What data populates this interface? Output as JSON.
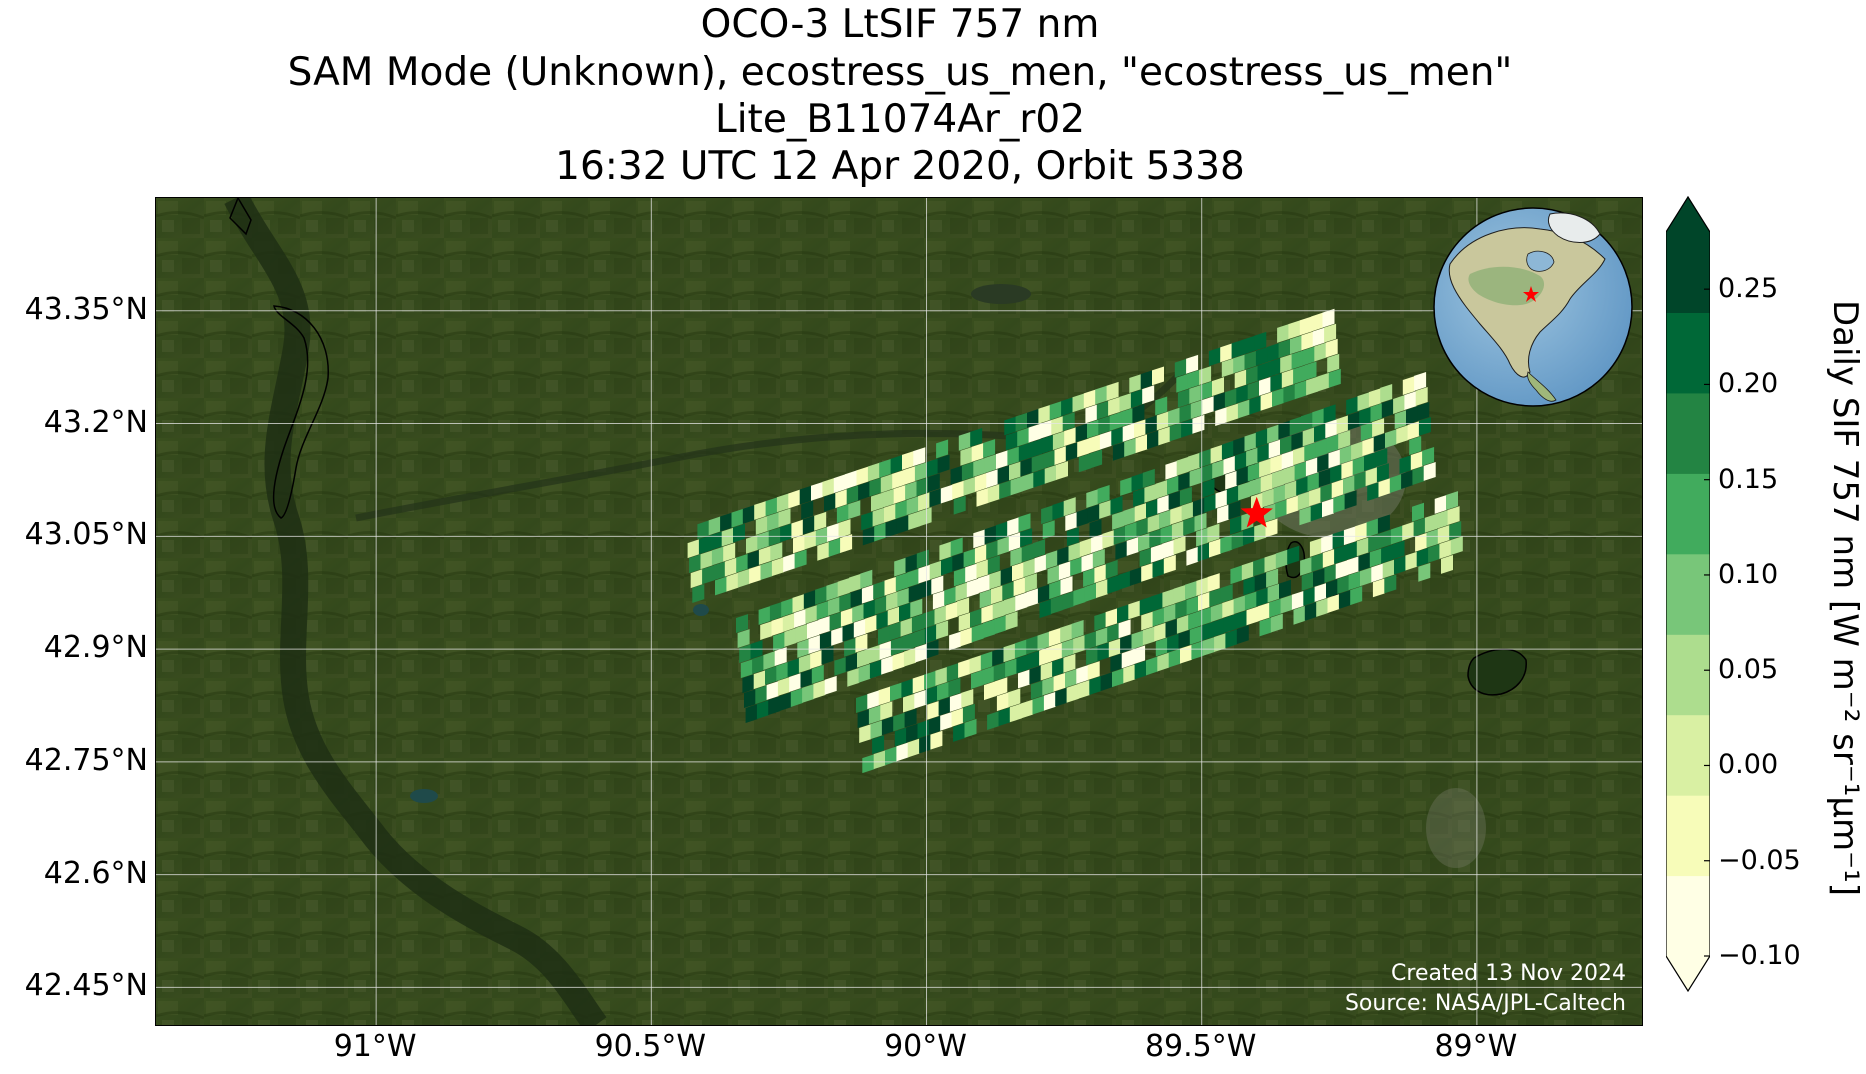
{
  "title": {
    "line1": "OCO-3 LtSIF 757 nm",
    "line2": "SAM Mode (Unknown), ecostress_us_men, \"ecostress_us_men\"",
    "line3": "Lite_B11074Ar_r02",
    "line4": "16:32 UTC 12 Apr 2020, Orbit 5338"
  },
  "map": {
    "lat_ticks": [
      "43.35°N",
      "43.2°N",
      "43.05°N",
      "42.9°N",
      "42.75°N",
      "42.6°N",
      "42.45°N"
    ],
    "lat_values": [
      43.35,
      43.2,
      43.05,
      42.9,
      42.75,
      42.6,
      42.45
    ],
    "lon_ticks": [
      "91°W",
      "90.5°W",
      "90°W",
      "89.5°W",
      "89°W"
    ],
    "lon_values": [
      -91.0,
      -90.5,
      -90.0,
      -89.5,
      -89.0
    ],
    "extent": {
      "lon_min": -91.4,
      "lon_max": -88.7,
      "lat_min": 42.4,
      "lat_max": 43.5
    },
    "target": {
      "name": "ecostress_us_men",
      "lon": -89.4,
      "lat": 43.08,
      "marker": "red-star"
    },
    "basemap": "satellite-imagery",
    "credit_created": "Created 13 Nov 2024",
    "credit_source": "Source: NASA/JPL-Caltech"
  },
  "colorbar": {
    "label": "Daily SIF 757 nm [W m⁻² sr⁻¹μm⁻¹]",
    "colormap": "YlGn",
    "vmin": -0.1,
    "vmax": 0.28,
    "extend": "both",
    "ticks": [
      "0.25",
      "0.20",
      "0.15",
      "0.10",
      "0.05",
      "0.00",
      "−0.05",
      "−0.10"
    ],
    "tick_values": [
      0.25,
      0.2,
      0.15,
      0.1,
      0.05,
      0.0,
      -0.05,
      -0.1
    ],
    "colors": [
      "#ffffe5",
      "#f7fcb9",
      "#d9f0a3",
      "#addd8e",
      "#78c679",
      "#41ab5d",
      "#238443",
      "#006837",
      "#004529"
    ]
  },
  "inset": {
    "name": "globe-locator",
    "marker_lon": -89.4,
    "marker_lat": 43.08,
    "marker_color": "#ff0000"
  }
}
